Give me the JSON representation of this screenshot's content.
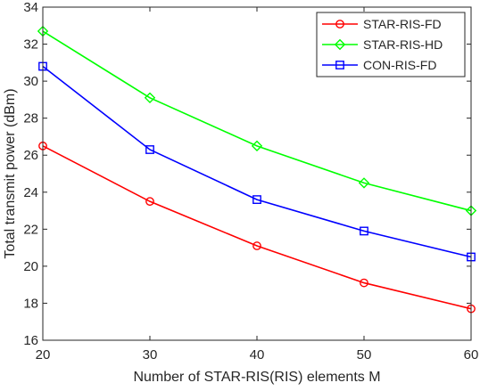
{
  "chart_data": {
    "type": "line",
    "title": "",
    "xlabel": "Number of STAR-RIS(RIS) elements M",
    "ylabel": "Total transmit power (dBm)",
    "x": [
      20,
      30,
      40,
      50,
      60
    ],
    "xlim": [
      20,
      60
    ],
    "ylim": [
      16,
      34
    ],
    "xticks": [
      "20",
      "30",
      "40",
      "50",
      "60"
    ],
    "yticks": [
      "16",
      "18",
      "20",
      "22",
      "24",
      "26",
      "28",
      "30",
      "32",
      "34"
    ],
    "grid": false,
    "legend_position": "top-right",
    "series": [
      {
        "name": "STAR-RIS-FD",
        "color": "#ff0000",
        "marker": "circle",
        "values": [
          26.5,
          23.5,
          21.1,
          19.1,
          17.7
        ]
      },
      {
        "name": "STAR-RIS-HD",
        "color": "#00ff00",
        "marker": "diamond",
        "values": [
          32.7,
          29.1,
          26.5,
          24.5,
          23.0
        ]
      },
      {
        "name": "CON-RIS-FD",
        "color": "#0000ff",
        "marker": "square",
        "values": [
          30.8,
          26.3,
          23.6,
          21.9,
          20.5
        ]
      }
    ]
  }
}
